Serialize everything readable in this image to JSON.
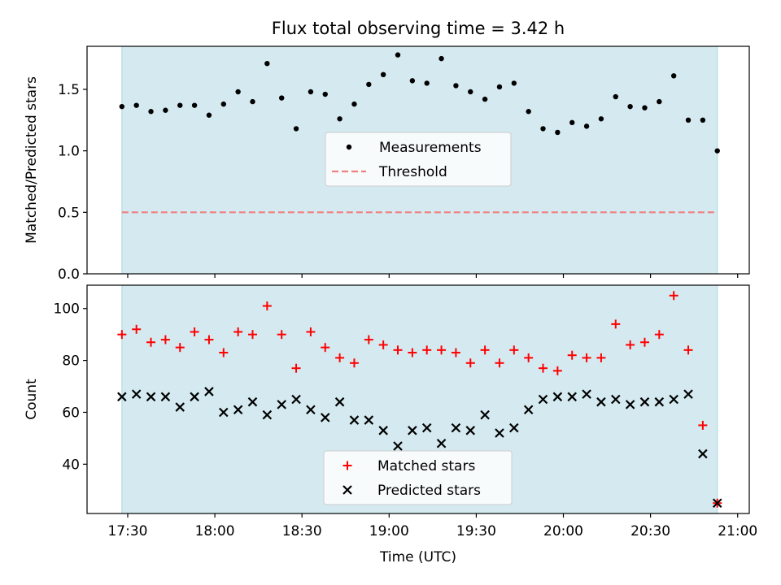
{
  "title": "Flux total observing time = 3.42 h",
  "colors": {
    "shade": "#d4eaf0",
    "shade_edge": "#a9d6e0",
    "threshold": "#f08080",
    "matched": "#ff0000",
    "predicted": "#000000",
    "measurement": "#000000"
  },
  "chart_data": [
    {
      "type": "scatter",
      "ylabel": "Matched/Predicted stars",
      "ylim": [
        0,
        1.85
      ],
      "yticks": [
        0.0,
        0.5,
        1.0,
        1.5
      ],
      "ytick_labels": [
        "0.0",
        "0.5",
        "1.0",
        "1.5"
      ],
      "xlim": [
        "17:16",
        "21:04"
      ],
      "shaded_interval": [
        "17:28",
        "20:53"
      ],
      "legend": {
        "placement": "center",
        "entries": [
          "Measurements",
          "Threshold"
        ]
      },
      "series": [
        {
          "name": "Measurements",
          "marker": "dot",
          "x": [
            "17:28",
            "17:33",
            "17:38",
            "17:43",
            "17:48",
            "17:53",
            "17:58",
            "18:03",
            "18:08",
            "18:13",
            "18:18",
            "18:23",
            "18:28",
            "18:33",
            "18:38",
            "18:43",
            "18:48",
            "18:53",
            "18:58",
            "19:03",
            "19:08",
            "19:13",
            "19:18",
            "19:23",
            "19:28",
            "19:33",
            "19:38",
            "19:43",
            "19:48",
            "19:53",
            "19:58",
            "20:03",
            "20:08",
            "20:13",
            "20:18",
            "20:23",
            "20:28",
            "20:33",
            "20:38",
            "20:43",
            "20:48",
            "20:53"
          ],
          "y": [
            1.36,
            1.37,
            1.32,
            1.33,
            1.37,
            1.37,
            1.29,
            1.38,
            1.48,
            1.4,
            1.71,
            1.43,
            1.18,
            1.48,
            1.46,
            1.26,
            1.38,
            1.54,
            1.62,
            1.78,
            1.57,
            1.55,
            1.75,
            1.53,
            1.48,
            1.42,
            1.52,
            1.55,
            1.32,
            1.18,
            1.15,
            1.23,
            1.2,
            1.26,
            1.44,
            1.36,
            1.35,
            1.4,
            1.61,
            1.25,
            1.25,
            1.0
          ]
        },
        {
          "name": "Threshold",
          "style": "dashed",
          "x": [
            "17:28",
            "20:53"
          ],
          "y": [
            0.5,
            0.5
          ]
        }
      ]
    },
    {
      "type": "scatter",
      "ylabel": "Count",
      "xlabel": "Time (UTC)",
      "ylim": [
        21,
        109
      ],
      "yticks": [
        40,
        60,
        80,
        100
      ],
      "ytick_labels": [
        "40",
        "60",
        "80",
        "100"
      ],
      "xlim": [
        "17:16",
        "21:04"
      ],
      "xticks": [
        "17:30",
        "18:00",
        "18:30",
        "19:00",
        "19:30",
        "20:00",
        "20:30",
        "21:00"
      ],
      "xtick_labels": [
        "17:30",
        "18:00",
        "18:30",
        "19:00",
        "19:30",
        "20:00",
        "20:30",
        "21:00"
      ],
      "shaded_interval": [
        "17:28",
        "20:53"
      ],
      "legend": {
        "placement": "lower center",
        "entries": [
          "Matched stars",
          "Predicted stars"
        ]
      },
      "series": [
        {
          "name": "Matched stars",
          "marker": "plus",
          "x": [
            "17:28",
            "17:33",
            "17:38",
            "17:43",
            "17:48",
            "17:53",
            "17:58",
            "18:03",
            "18:08",
            "18:13",
            "18:18",
            "18:23",
            "18:28",
            "18:33",
            "18:38",
            "18:43",
            "18:48",
            "18:53",
            "18:58",
            "19:03",
            "19:08",
            "19:13",
            "19:18",
            "19:23",
            "19:28",
            "19:33",
            "19:38",
            "19:43",
            "19:48",
            "19:53",
            "19:58",
            "20:03",
            "20:08",
            "20:13",
            "20:18",
            "20:23",
            "20:28",
            "20:33",
            "20:38",
            "20:43",
            "20:48",
            "20:53"
          ],
          "y": [
            90,
            92,
            87,
            88,
            85,
            91,
            88,
            83,
            91,
            90,
            101,
            90,
            77,
            91,
            85,
            81,
            79,
            88,
            86,
            84,
            83,
            84,
            84,
            83,
            79,
            84,
            79,
            84,
            81,
            77,
            76,
            82,
            81,
            81,
            94,
            86,
            87,
            90,
            105,
            84,
            55,
            25
          ]
        },
        {
          "name": "Predicted stars",
          "marker": "x",
          "x": [
            "17:28",
            "17:33",
            "17:38",
            "17:43",
            "17:48",
            "17:53",
            "17:58",
            "18:03",
            "18:08",
            "18:13",
            "18:18",
            "18:23",
            "18:28",
            "18:33",
            "18:38",
            "18:43",
            "18:48",
            "18:53",
            "18:58",
            "19:03",
            "19:08",
            "19:13",
            "19:18",
            "19:23",
            "19:28",
            "19:33",
            "19:38",
            "19:43",
            "19:48",
            "19:53",
            "19:58",
            "20:03",
            "20:08",
            "20:13",
            "20:18",
            "20:23",
            "20:28",
            "20:33",
            "20:38",
            "20:43",
            "20:48",
            "20:53"
          ],
          "y": [
            66,
            67,
            66,
            66,
            62,
            66,
            68,
            60,
            61,
            64,
            59,
            63,
            65,
            61,
            58,
            64,
            57,
            57,
            53,
            47,
            53,
            54,
            48,
            54,
            53,
            59,
            52,
            54,
            61,
            65,
            66,
            66,
            67,
            64,
            65,
            63,
            64,
            64,
            65,
            67,
            44,
            25
          ]
        }
      ]
    }
  ]
}
